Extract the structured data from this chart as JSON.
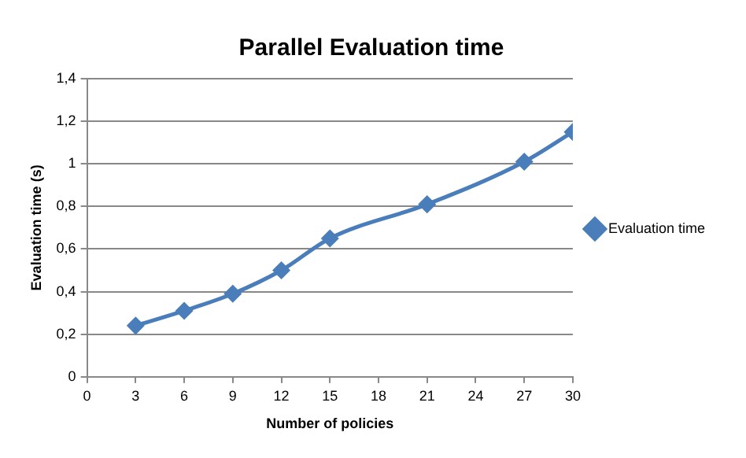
{
  "chart_data": {
    "type": "line",
    "title": "Parallel Evaluation time",
    "xlabel": "Number of policies",
    "ylabel": "Evaluation time (s)",
    "x": [
      3,
      6,
      9,
      12,
      15,
      21,
      27,
      30
    ],
    "series": [
      {
        "name": "Evaluation time",
        "color": "#4a7ebb",
        "values": [
          0.24,
          0.31,
          0.39,
          0.5,
          0.65,
          0.81,
          1.01,
          1.15
        ]
      }
    ],
    "xlim": [
      0,
      30
    ],
    "xticks": [
      0,
      3,
      6,
      9,
      12,
      15,
      18,
      21,
      24,
      27,
      30
    ],
    "ylim": [
      0,
      1.4
    ],
    "yticks": [
      0,
      {
        "value": 0.2,
        "label": "0,2"
      },
      {
        "value": 0.4,
        "label": "0,4"
      },
      {
        "value": 0.6,
        "label": "0,6"
      },
      {
        "value": 0.8,
        "label": "0,8"
      },
      1,
      {
        "value": 1.2,
        "label": "1,2"
      },
      {
        "value": 1.4,
        "label": "1,4"
      }
    ],
    "grid": "y",
    "legend": "right",
    "marker": "diamond",
    "line_style": "solid"
  }
}
